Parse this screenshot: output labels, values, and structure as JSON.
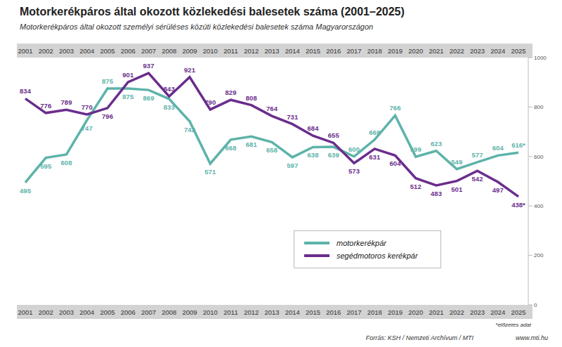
{
  "chart_data": {
    "type": "line",
    "title": "Motorkerékpáros által okozott közlekedési balesetek száma (2001–2025)",
    "subtitle": "Motorkerékpáros által okozott személyi sérüléses közúti közlekedési balesetek száma Magyarországon",
    "categories": [
      "2001",
      "2002",
      "2003",
      "2004",
      "2005",
      "2006",
      "2007",
      "2008",
      "2009",
      "2010",
      "2011",
      "2012",
      "2013",
      "2014",
      "2015",
      "2016",
      "2017",
      "2018",
      "2019",
      "2020",
      "2021",
      "2022",
      "2023",
      "2024",
      "2025"
    ],
    "series": [
      {
        "name": "motorkerékpár",
        "color": "#5db3a9",
        "values": [
          495,
          595,
          608,
          747,
          875,
          875,
          869,
          833,
          742,
          571,
          668,
          681,
          658,
          597,
          638,
          639,
          600,
          668,
          766,
          599,
          623,
          549,
          577,
          604,
          616
        ],
        "value_labels": [
          "495",
          "595",
          "608",
          "747",
          "875",
          "875",
          "869",
          "833",
          "742",
          "571",
          "668",
          "681",
          "658",
          "597",
          "638",
          "639",
          "600",
          "668",
          "766",
          "599",
          "623",
          "549",
          "577",
          "604",
          "616*"
        ]
      },
      {
        "name": "segédmotoros kerékpár",
        "color": "#6a2d8c",
        "values": [
          834,
          776,
          789,
          770,
          796,
          901,
          937,
          843,
          921,
          790,
          829,
          808,
          764,
          731,
          684,
          655,
          573,
          631,
          604,
          512,
          483,
          501,
          542,
          497,
          438
        ],
        "value_labels": [
          "834",
          "776",
          "789",
          "770",
          "796",
          "901",
          "937",
          "843",
          "921",
          "790",
          "829",
          "808",
          "764",
          "731",
          "684",
          "655",
          "573",
          "631",
          "604",
          "512",
          "483",
          "501",
          "542",
          "497",
          "438*"
        ]
      }
    ],
    "ylim": [
      0,
      1000
    ],
    "yticks": [
      0,
      200,
      400,
      600,
      800,
      1000
    ],
    "grid": false,
    "legend": "bottom",
    "data_labels": true,
    "note": "*előzetes adat",
    "source": "Forrás: KSH / Nemzeti Archívum / MTI",
    "url": "www.mti.hu"
  }
}
